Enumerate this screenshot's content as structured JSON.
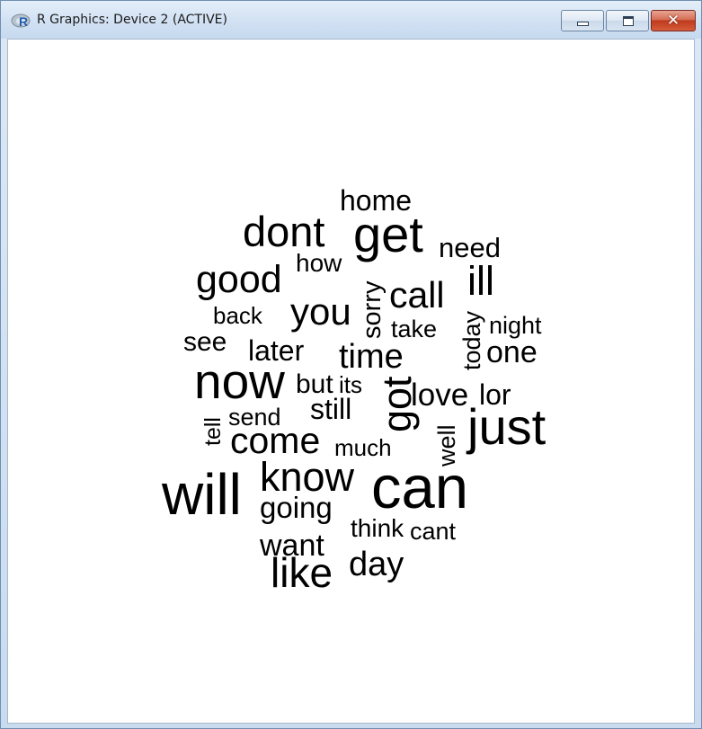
{
  "window": {
    "title": "R Graphics: Device 2 (ACTIVE)",
    "icon": "r-logo-icon",
    "controls": {
      "minimize_icon": "minimize-icon",
      "maximize_icon": "maximize-icon",
      "close_icon": "close-icon",
      "close_glyph": "✕"
    },
    "close_button_color": "#c8452a"
  },
  "wordcloud": {
    "color": "#000000",
    "words": [
      {
        "text": "home"
      },
      {
        "text": "dont"
      },
      {
        "text": "get"
      },
      {
        "text": "need"
      },
      {
        "text": "how"
      },
      {
        "text": "good"
      },
      {
        "text": "ill"
      },
      {
        "text": "call"
      },
      {
        "text": "sorry"
      },
      {
        "text": "you"
      },
      {
        "text": "back"
      },
      {
        "text": "today"
      },
      {
        "text": "take"
      },
      {
        "text": "night"
      },
      {
        "text": "see"
      },
      {
        "text": "later"
      },
      {
        "text": "time"
      },
      {
        "text": "one"
      },
      {
        "text": "now"
      },
      {
        "text": "but"
      },
      {
        "text": "its"
      },
      {
        "text": "got"
      },
      {
        "text": "love"
      },
      {
        "text": "lor"
      },
      {
        "text": "tell"
      },
      {
        "text": "send"
      },
      {
        "text": "still"
      },
      {
        "text": "well"
      },
      {
        "text": "just"
      },
      {
        "text": "come"
      },
      {
        "text": "much"
      },
      {
        "text": "will"
      },
      {
        "text": "know"
      },
      {
        "text": "can"
      },
      {
        "text": "going"
      },
      {
        "text": "think"
      },
      {
        "text": "cant"
      },
      {
        "text": "want"
      },
      {
        "text": "day"
      },
      {
        "text": "like"
      }
    ]
  }
}
